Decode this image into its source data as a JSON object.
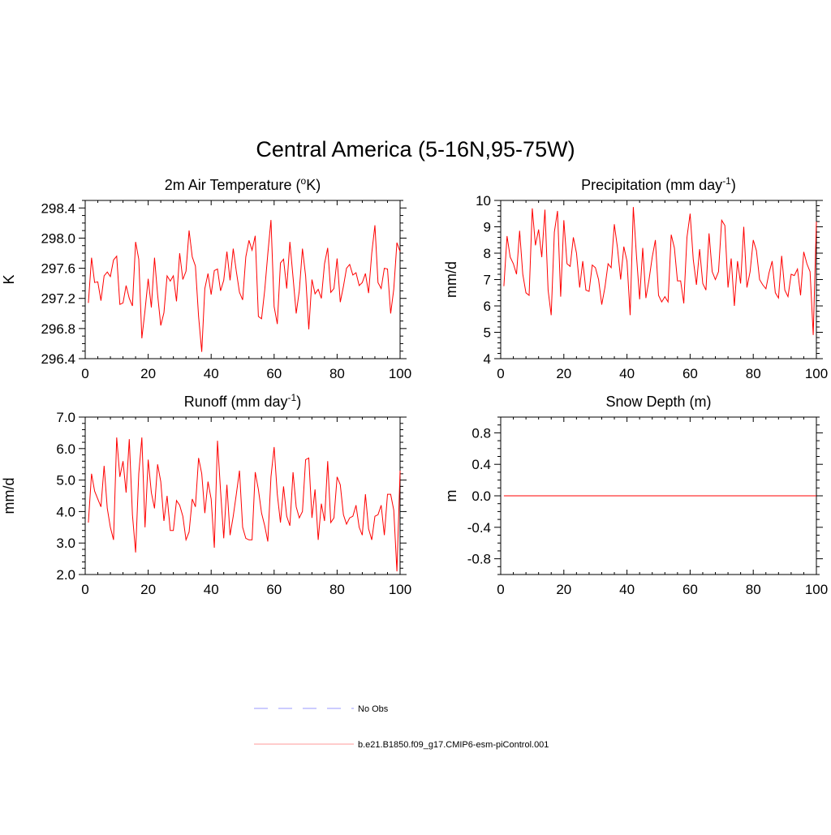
{
  "title": "Central America (5-16N,95-75W)",
  "chart_data": [
    {
      "type": "line",
      "title": "2m Air Temperature (",
      "title_sup": "o",
      "title_after": "K)",
      "xlabel": "",
      "ylabel": "K",
      "xlim": [
        0,
        100
      ],
      "ylim": [
        296.4,
        298.5
      ],
      "xticks": [
        0,
        20,
        40,
        60,
        80,
        100
      ],
      "xtick_labels": [
        "0",
        "20",
        "40",
        "60",
        "80",
        "100"
      ],
      "yticks": [
        296.4,
        296.8,
        297.2,
        297.6,
        298.0,
        298.4
      ],
      "ytick_labels": [
        "296.4",
        "296.8",
        "297.2",
        "297.6",
        "298.0",
        "298.4"
      ],
      "ytick_minor": 0.1,
      "series": [
        {
          "name": "b.e21.B1850.f09_g17.CMIP6-esm-piControl.001",
          "color": "#ff0000",
          "values": [
            297.14,
            297.74,
            297.41,
            297.42,
            297.17,
            297.5,
            297.55,
            297.49,
            297.71,
            297.76,
            297.12,
            297.14,
            297.37,
            297.2,
            297.1,
            297.95,
            297.72,
            296.67,
            297.04,
            297.46,
            297.08,
            297.74,
            297.25,
            296.84,
            297.01,
            297.5,
            297.43,
            297.5,
            297.16,
            297.8,
            297.45,
            297.56,
            298.1,
            297.75,
            297.63,
            296.96,
            296.49,
            297.33,
            297.53,
            297.25,
            297.57,
            297.59,
            297.3,
            297.44,
            297.82,
            297.44,
            297.86,
            297.56,
            297.28,
            297.18,
            297.75,
            297.97,
            297.84,
            298.03,
            296.96,
            296.93,
            297.31,
            297.79,
            298.24,
            297.09,
            296.86,
            297.67,
            297.72,
            297.33,
            297.95,
            297.48,
            297.0,
            297.3,
            297.86,
            297.5,
            296.79,
            297.45,
            297.26,
            297.32,
            297.2,
            297.66,
            297.87,
            297.28,
            297.33,
            297.73,
            297.15,
            297.36,
            297.6,
            297.65,
            297.51,
            297.54,
            297.37,
            297.41,
            297.53,
            297.27,
            297.8,
            298.17,
            297.41,
            297.33,
            297.6,
            297.59,
            297.0,
            297.32,
            297.94,
            297.82
          ]
        }
      ]
    },
    {
      "type": "line",
      "title": "Precipitation (mm day",
      "title_sup": "-1",
      "title_after": ")",
      "xlabel": "",
      "ylabel": "mm/d",
      "xlim": [
        0,
        100
      ],
      "ylim": [
        4,
        10
      ],
      "xticks": [
        0,
        20,
        40,
        60,
        80,
        100
      ],
      "xtick_labels": [
        "0",
        "20",
        "40",
        "60",
        "80",
        "100"
      ],
      "yticks": [
        4,
        5,
        6,
        7,
        8,
        9,
        10
      ],
      "ytick_labels": [
        "4",
        "5",
        "6",
        "7",
        "8",
        "9",
        "10"
      ],
      "ytick_minor": 0.2,
      "series": [
        {
          "name": "b.e21.B1850.f09_g17.CMIP6-esm-piControl.001",
          "color": "#ff0000",
          "values": [
            6.75,
            8.65,
            7.85,
            7.6,
            7.2,
            8.85,
            7.2,
            6.5,
            6.4,
            9.7,
            8.3,
            8.9,
            7.85,
            9.65,
            6.6,
            5.65,
            8.8,
            9.6,
            6.35,
            9.25,
            7.6,
            7.5,
            8.6,
            8.0,
            6.7,
            7.7,
            6.6,
            6.55,
            7.55,
            7.45,
            7.0,
            6.05,
            6.7,
            7.6,
            7.45,
            9.1,
            8.2,
            7.0,
            8.25,
            7.7,
            5.65,
            9.75,
            7.9,
            6.25,
            8.2,
            6.3,
            7.0,
            7.85,
            8.5,
            6.4,
            6.15,
            6.35,
            6.15,
            8.7,
            8.2,
            6.95,
            6.95,
            6.1,
            8.6,
            9.5,
            7.75,
            6.8,
            8.15,
            6.85,
            6.6,
            8.75,
            7.3,
            7.0,
            7.3,
            9.25,
            9.05,
            6.7,
            7.8,
            6.0,
            7.7,
            6.85,
            9.0,
            6.7,
            7.3,
            8.5,
            8.1,
            7.0,
            6.8,
            6.65,
            7.25,
            7.7,
            6.5,
            6.3,
            7.9,
            6.6,
            6.35,
            7.2,
            7.15,
            7.4,
            6.4,
            8.05,
            7.6,
            7.3,
            4.9,
            9.2
          ]
        }
      ]
    },
    {
      "type": "line",
      "title": "Runoff (mm day",
      "title_sup": "-1",
      "title_after": ")",
      "xlabel": "",
      "ylabel": "mm/d",
      "xlim": [
        0,
        100
      ],
      "ylim": [
        2.0,
        7.0
      ],
      "xticks": [
        0,
        20,
        40,
        60,
        80,
        100
      ],
      "xtick_labels": [
        "0",
        "20",
        "40",
        "60",
        "80",
        "100"
      ],
      "yticks": [
        2.0,
        3.0,
        4.0,
        5.0,
        6.0,
        7.0
      ],
      "ytick_labels": [
        "2.0",
        "3.0",
        "4.0",
        "5.0",
        "6.0",
        "7.0"
      ],
      "ytick_minor": 0.2,
      "series": [
        {
          "name": "b.e21.B1850.f09_g17.CMIP6-esm-piControl.001",
          "color": "#ff0000",
          "values": [
            3.65,
            5.2,
            4.65,
            4.4,
            4.15,
            5.45,
            4.1,
            3.5,
            3.1,
            6.35,
            5.1,
            5.6,
            4.6,
            6.3,
            3.9,
            2.7,
            5.2,
            6.35,
            3.5,
            5.65,
            4.6,
            4.1,
            5.5,
            4.95,
            3.7,
            4.5,
            3.4,
            3.4,
            4.35,
            4.2,
            3.85,
            3.1,
            3.35,
            4.4,
            4.15,
            5.7,
            5.2,
            3.95,
            4.95,
            4.4,
            2.85,
            6.25,
            4.65,
            3.15,
            4.85,
            3.25,
            3.85,
            4.55,
            5.3,
            3.5,
            3.15,
            3.1,
            3.1,
            5.25,
            4.7,
            3.95,
            3.55,
            3.05,
            5.1,
            6.05,
            4.55,
            3.65,
            4.8,
            3.85,
            3.55,
            5.25,
            4.15,
            3.8,
            4.0,
            5.65,
            5.7,
            3.8,
            4.7,
            3.1,
            4.25,
            3.7,
            5.6,
            3.65,
            3.8,
            5.1,
            4.85,
            3.9,
            3.6,
            3.8,
            3.85,
            4.2,
            3.5,
            3.25,
            4.55,
            3.45,
            3.1,
            3.85,
            3.9,
            4.2,
            3.25,
            4.55,
            4.55,
            4.05,
            2.1,
            5.3
          ]
        }
      ]
    },
    {
      "type": "line",
      "title": "Snow Depth (m)",
      "title_sup": "",
      "title_after": "",
      "xlabel": "",
      "ylabel": "m",
      "xlim": [
        0,
        100
      ],
      "ylim": [
        -1.0,
        1.0
      ],
      "xticks": [
        0,
        20,
        40,
        60,
        80,
        100
      ],
      "xtick_labels": [
        "0",
        "20",
        "40",
        "60",
        "80",
        "100"
      ],
      "yticks": [
        -0.8,
        -0.4,
        0.0,
        0.4,
        0.8
      ],
      "ytick_labels": [
        "-0.8",
        "-0.4",
        "0.0",
        "0.4",
        "0.8"
      ],
      "ytick_minor": 0.1,
      "series": [
        {
          "name": "b.e21.B1850.f09_g17.CMIP6-esm-piControl.001",
          "color": "#ff0000",
          "values": [
            0.0,
            0.0
          ]
        }
      ],
      "series_x": [
        1,
        100
      ]
    }
  ],
  "legend": [
    {
      "label": "No Obs",
      "color": "#9999ff",
      "style": "dashed"
    },
    {
      "label": "b.e21.B1850.f09_g17.CMIP6-esm-piControl.001",
      "color": "#ff9999",
      "style": "solid"
    }
  ]
}
